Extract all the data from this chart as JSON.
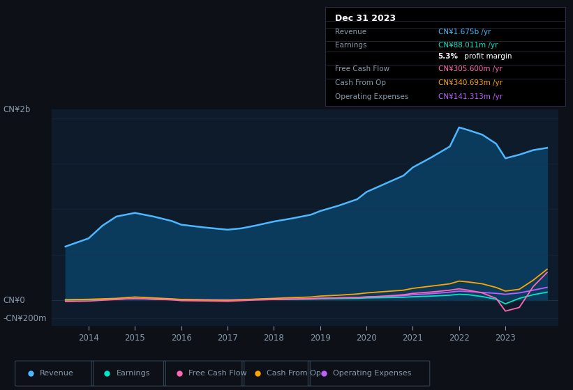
{
  "bg_color": "#0d1117",
  "plot_bg_color": "#0d1b2a",
  "ylabel_top": "CN¥2b",
  "ylabel_zero": "CN¥0",
  "ylabel_neg": "-CN¥200m",
  "x_years": [
    2013.5,
    2014.0,
    2014.3,
    2014.6,
    2015.0,
    2015.4,
    2015.8,
    2016.0,
    2016.5,
    2017.0,
    2017.3,
    2017.6,
    2018.0,
    2018.4,
    2018.8,
    2019.0,
    2019.4,
    2019.8,
    2020.0,
    2020.4,
    2020.8,
    2021.0,
    2021.4,
    2021.8,
    2022.0,
    2022.2,
    2022.5,
    2022.8,
    2023.0,
    2023.3,
    2023.6,
    2023.9
  ],
  "revenue": [
    590,
    680,
    820,
    920,
    960,
    920,
    870,
    830,
    800,
    775,
    790,
    820,
    865,
    900,
    940,
    980,
    1040,
    1110,
    1190,
    1280,
    1370,
    1460,
    1570,
    1690,
    1900,
    1870,
    1820,
    1720,
    1560,
    1600,
    1650,
    1675
  ],
  "earnings": [
    2,
    5,
    8,
    12,
    18,
    12,
    5,
    2,
    -2,
    -5,
    0,
    5,
    8,
    10,
    12,
    15,
    18,
    20,
    25,
    28,
    32,
    38,
    45,
    55,
    65,
    60,
    40,
    10,
    -40,
    20,
    60,
    88
  ],
  "free_cash_flow": [
    -15,
    -10,
    0,
    8,
    20,
    10,
    5,
    -5,
    -8,
    -12,
    -5,
    3,
    8,
    12,
    15,
    20,
    25,
    30,
    35,
    45,
    60,
    75,
    90,
    110,
    125,
    110,
    80,
    20,
    -120,
    -80,
    150,
    305
  ],
  "cash_from_op": [
    5,
    10,
    15,
    20,
    35,
    25,
    15,
    8,
    3,
    -2,
    5,
    12,
    20,
    28,
    35,
    45,
    55,
    68,
    80,
    95,
    110,
    130,
    155,
    180,
    210,
    200,
    180,
    140,
    100,
    120,
    220,
    340
  ],
  "operating_expenses": [
    3,
    5,
    8,
    12,
    18,
    14,
    10,
    7,
    5,
    4,
    6,
    9,
    12,
    15,
    18,
    22,
    26,
    30,
    36,
    42,
    50,
    60,
    72,
    88,
    100,
    95,
    85,
    75,
    65,
    80,
    110,
    141
  ],
  "revenue_color": "#4db8ff",
  "earnings_color": "#00e5c8",
  "free_cash_flow_color": "#ff69b4",
  "cash_from_op_color": "#ffa500",
  "operating_expenses_color": "#bf5fff",
  "fill_color": "#0a3a5c",
  "grid_color": "#1e3048",
  "text_color": "#8899aa",
  "ylim_low": -280,
  "ylim_high": 2100,
  "xlim_low": 2013.2,
  "xlim_high": 2024.15,
  "xticks": [
    2014,
    2015,
    2016,
    2017,
    2018,
    2019,
    2020,
    2021,
    2022,
    2023
  ],
  "title_box_text": "Dec 31 2023",
  "info_rows": [
    {
      "label": "Revenue",
      "value": "CN¥1.675b",
      "suffix": " /yr",
      "color": "#4db8ff",
      "bold": false
    },
    {
      "label": "Earnings",
      "value": "CN¥88.011m",
      "suffix": " /yr",
      "color": "#00e5c8",
      "bold": false
    },
    {
      "label": "",
      "value": "5.3%",
      "suffix": " profit margin",
      "color": "#ffffff",
      "bold": true
    },
    {
      "label": "Free Cash Flow",
      "value": "CN¥305.600m",
      "suffix": " /yr",
      "color": "#ff69b4",
      "bold": false
    },
    {
      "label": "Cash From Op",
      "value": "CN¥340.693m",
      "suffix": " /yr",
      "color": "#ffa500",
      "bold": false
    },
    {
      "label": "Operating Expenses",
      "value": "CN¥141.313m",
      "suffix": " /yr",
      "color": "#bf5fff",
      "bold": false
    }
  ],
  "legend_items": [
    {
      "label": "Revenue",
      "color": "#4db8ff"
    },
    {
      "label": "Earnings",
      "color": "#00e5c8"
    },
    {
      "label": "Free Cash Flow",
      "color": "#ff69b4"
    },
    {
      "label": "Cash From Op",
      "color": "#ffa500"
    },
    {
      "label": "Operating Expenses",
      "color": "#bf5fff"
    }
  ]
}
